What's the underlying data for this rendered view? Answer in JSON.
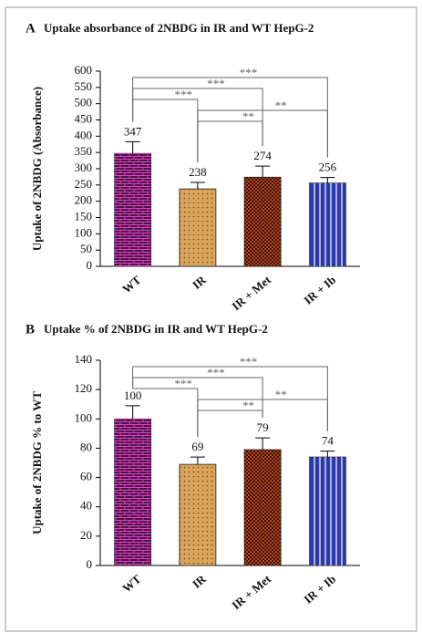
{
  "chart_data": [
    {
      "type": "bar",
      "panel": "A",
      "title": "Uptake absorbance of 2NBDG in IR and WT HepG-2",
      "ylabel": "Uptake of 2NBDG (Absorbance)",
      "categories": [
        "WT",
        "IR",
        "IR + Met",
        "IR + Ib"
      ],
      "values": [
        347,
        238,
        274,
        256
      ],
      "errors": [
        36,
        20,
        34,
        17
      ],
      "colors": [
        "#4a1548",
        "#d9a35a",
        "#b5451e",
        "#2b3aa8"
      ],
      "ylim": [
        0,
        600
      ],
      "yticks": [
        0,
        50,
        100,
        150,
        200,
        250,
        300,
        350,
        400,
        450,
        500,
        550,
        600
      ],
      "comparisons": [
        {
          "from": "WT",
          "to": "IR + Ib",
          "label": "***"
        },
        {
          "from": "WT",
          "to": "IR + Met",
          "label": "***"
        },
        {
          "from": "WT",
          "to": "IR",
          "label": "***"
        },
        {
          "from": "IR",
          "to": "IR + Ib",
          "label": "**"
        },
        {
          "from": "IR",
          "to": "IR + Met",
          "label": "**"
        }
      ]
    },
    {
      "type": "bar",
      "panel": "B",
      "title": "Uptake % of 2NBDG in IR and WT HepG-2",
      "ylabel": "Uptake of 2NBDG % to WT",
      "categories": [
        "WT",
        "IR",
        "IR + Met",
        "IR + Ib"
      ],
      "values": [
        100,
        69,
        79,
        74
      ],
      "errors": [
        9,
        5,
        8,
        4
      ],
      "colors": [
        "#4a1548",
        "#d9a35a",
        "#b5451e",
        "#2b3aa8"
      ],
      "ylim": [
        0,
        140
      ],
      "yticks": [
        0,
        20,
        40,
        60,
        80,
        100,
        120,
        140
      ],
      "comparisons": [
        {
          "from": "WT",
          "to": "IR + Ib",
          "label": "***"
        },
        {
          "from": "WT",
          "to": "IR + Met",
          "label": "***"
        },
        {
          "from": "WT",
          "to": "IR",
          "label": "***"
        },
        {
          "from": "IR",
          "to": "IR + Ib",
          "label": "**"
        },
        {
          "from": "IR",
          "to": "IR + Met",
          "label": "**"
        }
      ]
    }
  ]
}
